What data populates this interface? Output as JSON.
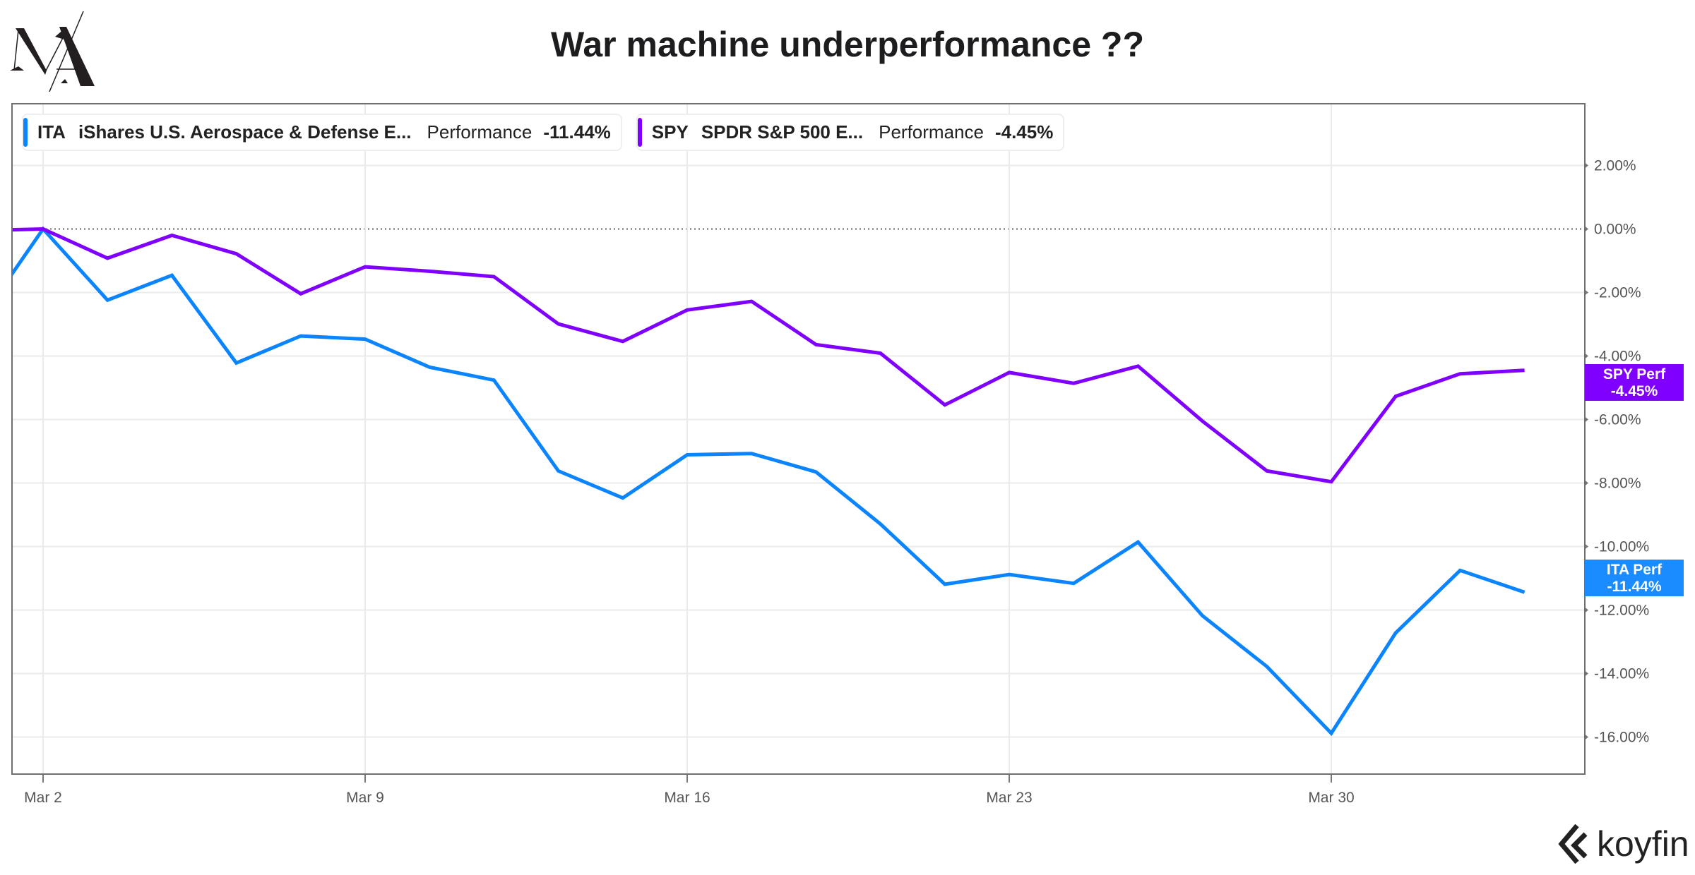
{
  "logo": {
    "text": "MA"
  },
  "chart_data": {
    "type": "line",
    "title": "War machine underperformance ??",
    "x": [
      "Feb 27",
      "Mar 2",
      "Mar 3",
      "Mar 4",
      "Mar 5",
      "Mar 6",
      "Mar 9",
      "Mar 10",
      "Mar 11",
      "Mar 12",
      "Mar 13",
      "Mar 16",
      "Mar 17",
      "Mar 18",
      "Mar 19",
      "Mar 20",
      "Mar 23",
      "Mar 24",
      "Mar 25",
      "Mar 26",
      "Mar 27",
      "Mar 30",
      "Mar 31",
      "Apr 1",
      "Apr 2"
    ],
    "x_tick_labels": [
      "Mar 2",
      "Mar 9",
      "Mar 16",
      "Mar 23",
      "Mar 30"
    ],
    "y_tick_values": [
      2,
      0,
      -2,
      -4,
      -6,
      -8,
      -10,
      -12,
      -14,
      -16
    ],
    "y_tick_labels": [
      "2.00%",
      "0.00%",
      "-2.00%",
      "-4.00%",
      "-6.00%",
      "-8.00%",
      "-10.00%",
      "-12.00%",
      "-14.00%",
      "-16.00%"
    ],
    "ylim": [
      -17.2,
      4
    ],
    "y_unit": "%",
    "y_axis_side": "right",
    "zero_line": "dotted",
    "grid": true,
    "legend_placement": "top-left",
    "series": [
      {
        "symbol": "ITA",
        "name": "iShares U.S. Aerospace & Defense E...",
        "metric_label": "Performance",
        "last_value": "-11.44%",
        "badge_label": "ITA Perf",
        "badge_value": "-11.44%",
        "color": "#0a84ff",
        "values": [
          -2.93,
          0,
          -2.24,
          -1.46,
          -4.22,
          -3.37,
          -3.47,
          -4.35,
          -4.76,
          -7.62,
          -8.47,
          -7.11,
          -7.07,
          -7.65,
          -9.29,
          -11.19,
          -10.88,
          -11.16,
          -9.86,
          -12.18,
          -13.78,
          -15.88,
          -12.72,
          -10.75,
          -11.44
        ]
      },
      {
        "symbol": "SPY",
        "name": "SPDR S&P 500 E...",
        "metric_label": "Performance",
        "last_value": "-4.45%",
        "badge_label": "SPY Perf",
        "badge_value": "-4.45%",
        "color": "#8000ff",
        "values": [
          -0.05,
          0,
          -0.92,
          -0.2,
          -0.78,
          -2.04,
          -1.19,
          -1.33,
          -1.5,
          -2.99,
          -3.54,
          -2.55,
          -2.28,
          -3.64,
          -3.91,
          -5.54,
          -4.52,
          -4.86,
          -4.32,
          -6.05,
          -7.62,
          -7.96,
          -5.27,
          -4.56,
          -4.45
        ]
      }
    ]
  },
  "watermark": {
    "text": "koyfin"
  }
}
